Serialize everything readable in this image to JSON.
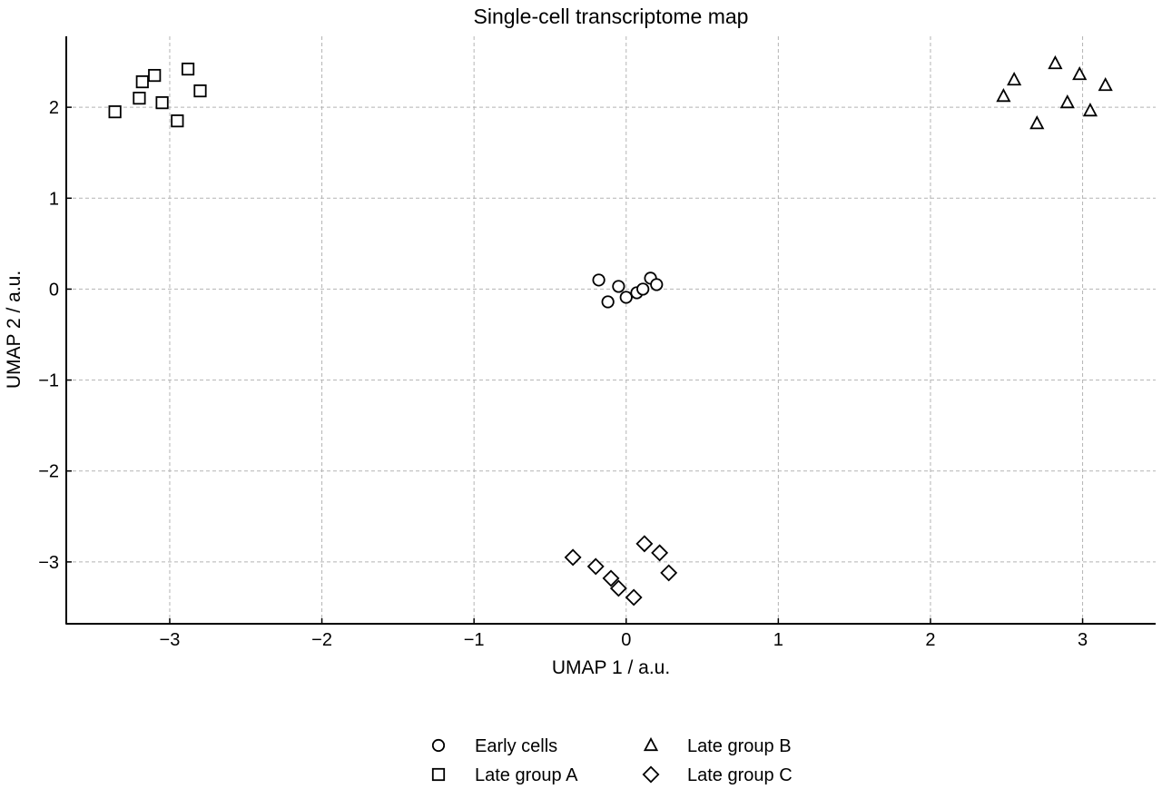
{
  "chart_data": {
    "type": "scatter",
    "title": "Single-cell transcriptome map",
    "xlabel": "UMAP 1 / a.u.",
    "ylabel": "UMAP 2 / a.u.",
    "xlim": [
      -3.68,
      3.48
    ],
    "ylim": [
      -3.68,
      2.78
    ],
    "xticks": [
      -3,
      -2,
      -1,
      0,
      1,
      2,
      3
    ],
    "yticks": [
      -3,
      -2,
      -1,
      0,
      1,
      2
    ],
    "xtick_labels": [
      "−3",
      "−2",
      "−1",
      "0",
      "1",
      "2",
      "3"
    ],
    "ytick_labels": [
      "−3",
      "−2",
      "−1",
      "0",
      "1",
      "2"
    ],
    "grid": true,
    "legend_position": "bottom-center",
    "series": [
      {
        "name": "Early cells",
        "marker": "circle",
        "points": [
          {
            "x": -0.18,
            "y": 0.1
          },
          {
            "x": -0.05,
            "y": 0.03
          },
          {
            "x": -0.12,
            "y": -0.14
          },
          {
            "x": 0.0,
            "y": -0.09
          },
          {
            "x": 0.07,
            "y": -0.04
          },
          {
            "x": 0.11,
            "y": 0.0
          },
          {
            "x": 0.16,
            "y": 0.12
          },
          {
            "x": 0.2,
            "y": 0.05
          }
        ]
      },
      {
        "name": "Late group A",
        "marker": "square",
        "points": [
          {
            "x": -3.36,
            "y": 1.95
          },
          {
            "x": -3.2,
            "y": 2.1
          },
          {
            "x": -3.18,
            "y": 2.28
          },
          {
            "x": -3.1,
            "y": 2.35
          },
          {
            "x": -3.05,
            "y": 2.05
          },
          {
            "x": -2.95,
            "y": 1.85
          },
          {
            "x": -2.88,
            "y": 2.42
          },
          {
            "x": -2.8,
            "y": 2.18
          }
        ]
      },
      {
        "name": "Late group B",
        "marker": "triangle",
        "points": [
          {
            "x": 2.48,
            "y": 2.12
          },
          {
            "x": 2.55,
            "y": 2.3
          },
          {
            "x": 2.7,
            "y": 1.82
          },
          {
            "x": 2.82,
            "y": 2.48
          },
          {
            "x": 2.9,
            "y": 2.05
          },
          {
            "x": 2.98,
            "y": 2.36
          },
          {
            "x": 3.05,
            "y": 1.96
          },
          {
            "x": 3.15,
            "y": 2.24
          }
        ]
      },
      {
        "name": "Late group C",
        "marker": "diamond",
        "points": [
          {
            "x": -0.35,
            "y": -2.95
          },
          {
            "x": -0.2,
            "y": -3.05
          },
          {
            "x": -0.1,
            "y": -3.18
          },
          {
            "x": -0.05,
            "y": -3.29
          },
          {
            "x": 0.05,
            "y": -3.39
          },
          {
            "x": 0.12,
            "y": -2.8
          },
          {
            "x": 0.22,
            "y": -2.9
          },
          {
            "x": 0.28,
            "y": -3.12
          }
        ]
      }
    ]
  }
}
